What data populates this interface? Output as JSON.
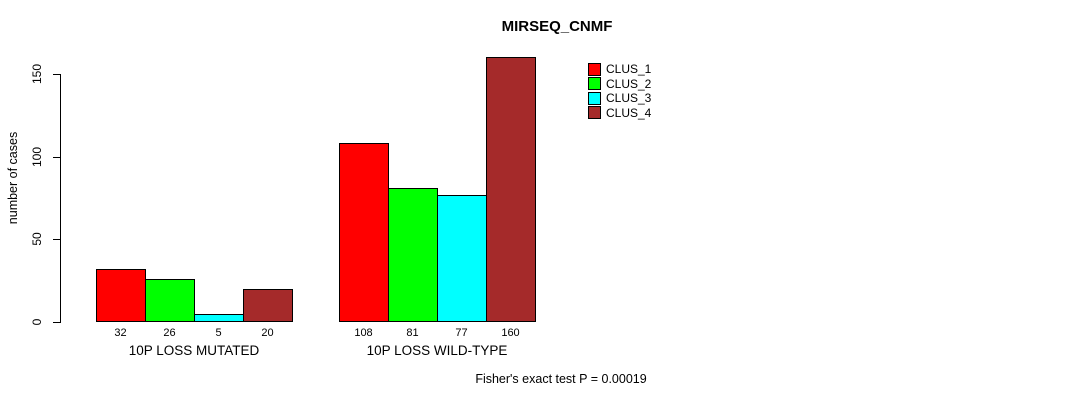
{
  "title": "MIRSEQ_CNMF",
  "footer": "Fisher's exact test P = 0.00019",
  "chart_data": {
    "type": "bar",
    "title": "MIRSEQ_CNMF",
    "xlabel": "",
    "ylabel": "number of cases",
    "ylim": [
      0,
      160
    ],
    "yticks": [
      0,
      50,
      100,
      150
    ],
    "grid": false,
    "legend_position": "top-right",
    "categories": [
      "10P LOSS MUTATED",
      "10P LOSS WILD-TYPE"
    ],
    "series": [
      {
        "name": "CLUS_1",
        "color": "#FF0000",
        "values": [
          32,
          108
        ]
      },
      {
        "name": "CLUS_2",
        "color": "#00FF00",
        "values": [
          26,
          81
        ]
      },
      {
        "name": "CLUS_3",
        "color": "#00FFFF",
        "values": [
          5,
          77
        ]
      },
      {
        "name": "CLUS_4",
        "color": "#A52A2A",
        "values": [
          20,
          160
        ]
      }
    ],
    "bar_value_labels": {
      "10P LOSS MUTATED": [
        32,
        26,
        5,
        20
      ],
      "10P LOSS WILD-TYPE": [
        108,
        81,
        77,
        160
      ]
    },
    "annotation": "Fisher's exact test P = 0.00019"
  }
}
